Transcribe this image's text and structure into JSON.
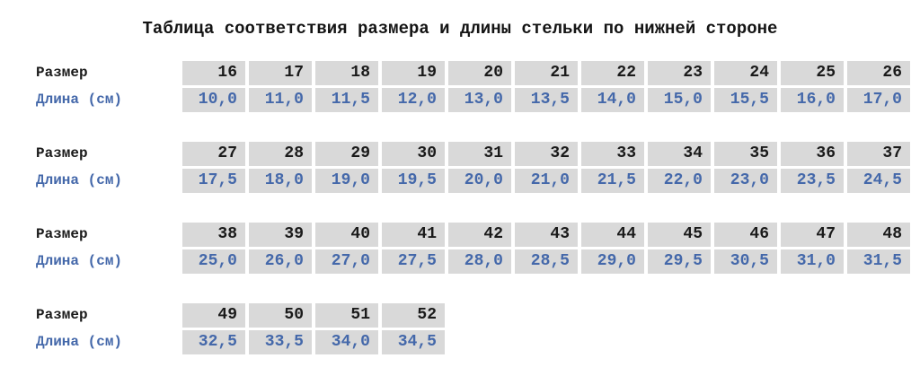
{
  "title": "Таблица соответствия размера и длины стельки по нижней стороне",
  "row_labels": {
    "size": "Размер",
    "length": "Длина (см)"
  },
  "colors": {
    "cell_bg": "#d9d9d9",
    "size_text": "#1a1a1a",
    "length_text": "#4468aa",
    "title_text": "#141414",
    "page_bg": "#ffffff"
  },
  "chart_data": {
    "type": "table",
    "title": "Таблица соответствия размера и длины стельки по нижней стороне",
    "row_headers": [
      "Размер",
      "Длина (см)"
    ],
    "groups": [
      {
        "sizes": [
          "16",
          "17",
          "18",
          "19",
          "20",
          "21",
          "22",
          "23",
          "24",
          "25",
          "26"
        ],
        "lengths": [
          "10,0",
          "11,0",
          "11,5",
          "12,0",
          "13,0",
          "13,5",
          "14,0",
          "15,0",
          "15,5",
          "16,0",
          "17,0"
        ]
      },
      {
        "sizes": [
          "27",
          "28",
          "29",
          "30",
          "31",
          "32",
          "33",
          "34",
          "35",
          "36",
          "37"
        ],
        "lengths": [
          "17,5",
          "18,0",
          "19,0",
          "19,5",
          "20,0",
          "21,0",
          "21,5",
          "22,0",
          "23,0",
          "23,5",
          "24,5"
        ]
      },
      {
        "sizes": [
          "38",
          "39",
          "40",
          "41",
          "42",
          "43",
          "44",
          "45",
          "46",
          "47",
          "48"
        ],
        "lengths": [
          "25,0",
          "26,0",
          "27,0",
          "27,5",
          "28,0",
          "28,5",
          "29,0",
          "29,5",
          "30,5",
          "31,0",
          "31,5"
        ]
      },
      {
        "sizes": [
          "49",
          "50",
          "51",
          "52"
        ],
        "lengths": [
          "32,5",
          "33,5",
          "34,0",
          "34,5"
        ]
      }
    ]
  }
}
